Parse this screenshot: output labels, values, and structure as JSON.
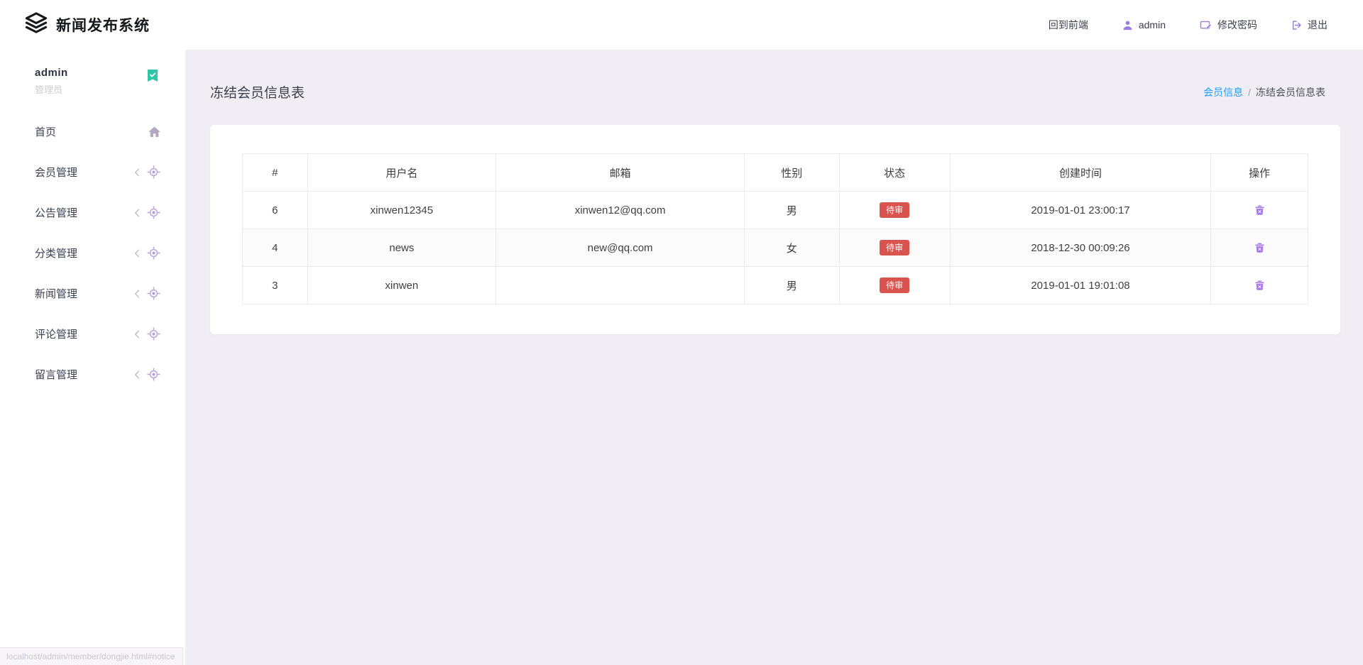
{
  "app": {
    "title": "新闻发布系统",
    "logo_icon": "layers-icon"
  },
  "header": {
    "items": [
      {
        "id": "back-to-front",
        "label": "回到前端",
        "icon": null
      },
      {
        "id": "user",
        "label": "admin",
        "icon": "user-icon"
      },
      {
        "id": "change-password",
        "label": "修改密码",
        "icon": "edit-password-icon"
      },
      {
        "id": "logout",
        "label": "退出",
        "icon": "logout-icon"
      }
    ]
  },
  "sidebar": {
    "user": {
      "name": "admin",
      "role": "管理员",
      "badge_icon": "verified-badge-icon"
    },
    "items": [
      {
        "id": "home",
        "label": "首页",
        "icon": "home-icon",
        "expandable": false
      },
      {
        "id": "member",
        "label": "会员管理",
        "icon": "target-icon",
        "chevron": "chevron-left-icon",
        "expandable": true
      },
      {
        "id": "notice",
        "label": "公告管理",
        "icon": "target-icon",
        "chevron": "chevron-left-icon",
        "expandable": true
      },
      {
        "id": "category",
        "label": "分类管理",
        "icon": "target-icon",
        "chevron": "chevron-left-icon",
        "expandable": true
      },
      {
        "id": "news",
        "label": "新闻管理",
        "icon": "target-icon",
        "chevron": "chevron-left-icon",
        "expandable": true
      },
      {
        "id": "comment",
        "label": "评论管理",
        "icon": "target-icon",
        "chevron": "chevron-left-icon",
        "expandable": true
      },
      {
        "id": "message",
        "label": "留言管理",
        "icon": "target-icon",
        "chevron": "chevron-left-icon",
        "expandable": true
      }
    ]
  },
  "page": {
    "title": "冻结会员信息表",
    "breadcrumb": {
      "parent": "会员信息",
      "separator": "/",
      "current": "冻结会员信息表"
    }
  },
  "table": {
    "columns": [
      "#",
      "用户名",
      "邮箱",
      "性别",
      "状态",
      "创建时间",
      "操作"
    ],
    "action_icon": "trash-icon",
    "rows": [
      {
        "id": "6",
        "username": "xinwen12345",
        "email": "xinwen12@qq.com",
        "gender": "男",
        "status": "待审",
        "created": "2019-01-01 23:00:17"
      },
      {
        "id": "4",
        "username": "news",
        "email": "new@qq.com",
        "gender": "女",
        "status": "待审",
        "created": "2018-12-30 00:09:26"
      },
      {
        "id": "3",
        "username": "xinwen",
        "email": "",
        "gender": "男",
        "status": "待审",
        "created": "2019-01-01 19:01:08"
      }
    ]
  },
  "statusbar": {
    "text": "localhost/admin/member/dongjie.html#notice"
  },
  "colors": {
    "accent_purple": "#9b7ce0",
    "icon_purple_light": "#b4a1d6",
    "teal_badge": "#2ec6a8",
    "status_red": "#d9534f",
    "link_blue": "#1e9fff",
    "main_bg": "#f1edf4"
  }
}
